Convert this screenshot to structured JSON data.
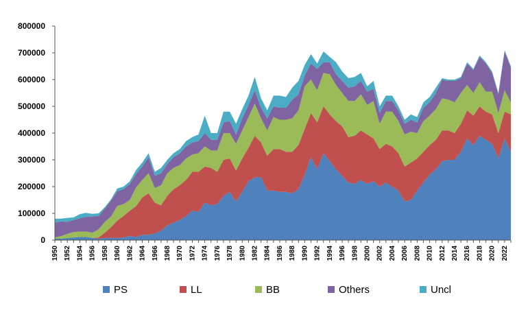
{
  "chart_data": {
    "type": "area",
    "stacked": true,
    "title": "",
    "xlabel": "",
    "ylabel": "",
    "ylim": [
      0,
      800000
    ],
    "y_ticks": [
      0,
      100000,
      200000,
      300000,
      400000,
      500000,
      600000,
      700000,
      800000
    ],
    "y_tick_labels": [
      "0",
      "100000",
      "200000",
      "300000",
      "400000",
      "500000",
      "600000",
      "700000",
      "800000"
    ],
    "x_tick_labels": [
      "1950",
      "1952",
      "1954",
      "1956",
      "1958",
      "1960",
      "1962",
      "1964",
      "1966",
      "1968",
      "1970",
      "1972",
      "1974",
      "1976",
      "1978",
      "1980",
      "1982",
      "1984",
      "1986",
      "1988",
      "1990",
      "1992",
      "1994",
      "1996",
      "1998",
      "2000",
      "2002",
      "2004",
      "2006",
      "2008",
      "2010",
      "2012",
      "2014",
      "2016",
      "2018",
      "2020",
      "2022"
    ],
    "x": [
      1950,
      1951,
      1952,
      1953,
      1954,
      1955,
      1956,
      1957,
      1958,
      1959,
      1960,
      1961,
      1962,
      1963,
      1964,
      1965,
      1966,
      1967,
      1968,
      1969,
      1970,
      1971,
      1972,
      1973,
      1974,
      1975,
      1976,
      1977,
      1978,
      1979,
      1980,
      1981,
      1982,
      1983,
      1984,
      1985,
      1986,
      1987,
      1988,
      1989,
      1990,
      1991,
      1992,
      1993,
      1994,
      1995,
      1996,
      1997,
      1998,
      1999,
      2000,
      2001,
      2002,
      2003,
      2004,
      2005,
      2006,
      2007,
      2008,
      2009,
      2010,
      2011,
      2012,
      2013,
      2014,
      2015,
      2016,
      2017,
      2018,
      2019,
      2020,
      2021,
      2022,
      2023
    ],
    "grid": false,
    "legend_position": "bottom",
    "series": [
      {
        "name": "PS",
        "color": "#4F81BD",
        "values": [
          5000,
          5000,
          8000,
          10000,
          12000,
          12000,
          8000,
          5000,
          8000,
          8000,
          8000,
          10000,
          15000,
          12000,
          20000,
          20000,
          25000,
          35000,
          55000,
          65000,
          75000,
          90000,
          110000,
          105000,
          140000,
          130000,
          135000,
          165000,
          180000,
          145000,
          180000,
          220000,
          235000,
          235000,
          185000,
          185000,
          180000,
          180000,
          175000,
          190000,
          245000,
          310000,
          265000,
          325000,
          295000,
          265000,
          240000,
          215000,
          210000,
          225000,
          210000,
          220000,
          200000,
          215000,
          200000,
          185000,
          145000,
          150000,
          185000,
          215000,
          245000,
          265000,
          295000,
          300000,
          300000,
          330000,
          380000,
          355000,
          390000,
          375000,
          360000,
          305000,
          380000,
          330000
        ]
      },
      {
        "name": "LL",
        "color": "#C0504D",
        "values": [
          0,
          0,
          0,
          0,
          0,
          0,
          0,
          5000,
          20000,
          40000,
          65000,
          80000,
          95000,
          115000,
          140000,
          155000,
          115000,
          95000,
          110000,
          125000,
          130000,
          135000,
          145000,
          150000,
          135000,
          140000,
          120000,
          135000,
          125000,
          115000,
          125000,
          125000,
          155000,
          130000,
          130000,
          155000,
          160000,
          150000,
          155000,
          165000,
          170000,
          165000,
          175000,
          175000,
          175000,
          180000,
          185000,
          170000,
          180000,
          185000,
          185000,
          160000,
          140000,
          145000,
          150000,
          140000,
          130000,
          140000,
          120000,
          115000,
          110000,
          110000,
          115000,
          110000,
          100000,
          105000,
          105000,
          110000,
          110000,
          105000,
          110000,
          95000,
          100000,
          140000
        ]
      },
      {
        "name": "BB",
        "color": "#9BBB59",
        "values": [
          5000,
          10000,
          15000,
          20000,
          20000,
          20000,
          20000,
          30000,
          40000,
          40000,
          55000,
          45000,
          40000,
          70000,
          65000,
          75000,
          55000,
          75000,
          85000,
          80000,
          75000,
          80000,
          65000,
          70000,
          75000,
          65000,
          80000,
          100000,
          95000,
          100000,
          105000,
          115000,
          120000,
          90000,
          95000,
          120000,
          110000,
          120000,
          125000,
          130000,
          160000,
          125000,
          120000,
          125000,
          150000,
          135000,
          125000,
          135000,
          130000,
          135000,
          110000,
          140000,
          95000,
          120000,
          130000,
          120000,
          120000,
          115000,
          95000,
          115000,
          110000,
          115000,
          120000,
          115000,
          115000,
          115000,
          95000,
          85000,
          90000,
          75000,
          85000,
          75000,
          80000,
          45000
        ]
      },
      {
        "name": "Others",
        "color": "#8064A2",
        "values": [
          55000,
          55000,
          45000,
          45000,
          50000,
          55000,
          60000,
          50000,
          50000,
          60000,
          55000,
          55000,
          60000,
          50000,
          50000,
          60000,
          45000,
          45000,
          35000,
          40000,
          45000,
          45000,
          45000,
          45000,
          50000,
          40000,
          40000,
          40000,
          45000,
          35000,
          45000,
          45000,
          50000,
          40000,
          45000,
          40000,
          45000,
          45000,
          70000,
          60000,
          40000,
          60000,
          80000,
          40000,
          45000,
          40000,
          45000,
          50000,
          55000,
          50000,
          50000,
          45000,
          40000,
          40000,
          40000,
          40000,
          40000,
          45000,
          40000,
          50000,
          50000,
          60000,
          70000,
          70000,
          80000,
          55000,
          80000,
          85000,
          95000,
          105000,
          70000,
          70000,
          145000,
          130000
        ]
      },
      {
        "name": "Uncl",
        "color": "#4BACC6",
        "values": [
          15000,
          10000,
          15000,
          10000,
          15000,
          15000,
          10000,
          10000,
          5000,
          5000,
          10000,
          10000,
          10000,
          15000,
          15000,
          15000,
          15000,
          20000,
          15000,
          15000,
          15000,
          20000,
          20000,
          25000,
          65000,
          25000,
          25000,
          40000,
          35000,
          40000,
          35000,
          35000,
          50000,
          35000,
          30000,
          40000,
          45000,
          40000,
          45000,
          50000,
          40000,
          35000,
          20000,
          40000,
          20000,
          45000,
          35000,
          35000,
          35000,
          30000,
          20000,
          30000,
          25000,
          20000,
          20000,
          15000,
          15000,
          20000,
          20000,
          20000,
          20000,
          20000,
          5000,
          5000,
          5000,
          5000,
          5000,
          5000,
          5000,
          5000,
          5000,
          5000,
          5000,
          5000
        ]
      }
    ]
  }
}
